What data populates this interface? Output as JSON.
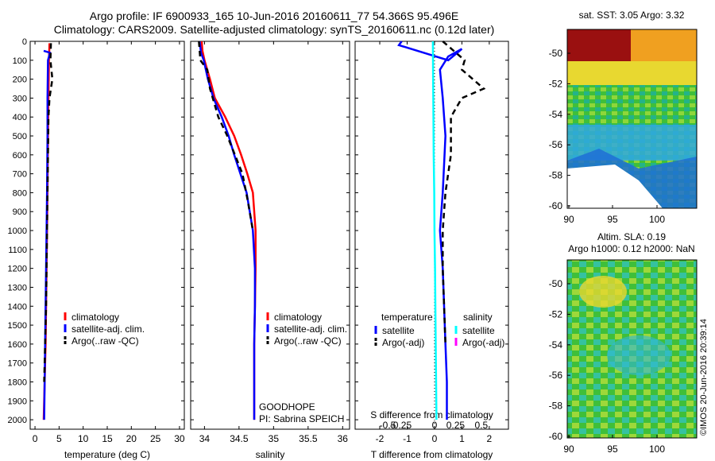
{
  "header": {
    "line1": "Argo profile: IF 6900933_165 10-Jun-2016 20160611_77 54.366S 95.496E",
    "line2": "Climatology: CARS2009. Satellite-adjusted climatology: synTS_20160611.nc (0.12d later)"
  },
  "side": {
    "sst_label": "sat. SST: 3.05 Argo: 3.32",
    "sla_label1": "Altim. SLA: 0.19",
    "sla_label2": "Argo h1000: 0.12 h2000: NaN",
    "credit": "©IMOS 20-Jun-2016 20:39:14"
  },
  "colors": {
    "climatology": "#ff0000",
    "satellite": "#0000ff",
    "argo": "#000000",
    "salinity_satellite": "#00ffff",
    "salinity_argo": "#ff00ff"
  },
  "chart_data": [
    {
      "type": "line",
      "xlabel": "temperature (deg C)",
      "ylabel": "",
      "xlim": [
        -1,
        31
      ],
      "ylim": [
        2050,
        0
      ],
      "xticks": [
        0,
        5,
        10,
        15,
        20,
        25,
        30
      ],
      "yticks": [
        0,
        100,
        200,
        300,
        400,
        500,
        600,
        700,
        800,
        900,
        1000,
        1100,
        1200,
        1300,
        1400,
        1500,
        1600,
        1700,
        1800,
        1900,
        2000
      ],
      "legend": [
        "climatology",
        "satellite-adj. clim.",
        "Argo(..raw -QC)"
      ],
      "series": [
        {
          "name": "climatology",
          "x": [
            3.0,
            2.9,
            2.8,
            2.7,
            2.6,
            2.5,
            2.4,
            2.3,
            2.2,
            2.0,
            1.8
          ],
          "y": [
            10,
            100,
            300,
            500,
            800,
            1000,
            1200,
            1400,
            1600,
            1800,
            2000
          ]
        },
        {
          "name": "satellite-adj. clim.",
          "x": [
            1.8,
            3.1,
            2.7,
            2.6,
            2.6,
            2.5,
            2.4,
            2.3,
            2.2,
            2.1,
            2.0,
            1.9
          ],
          "y": [
            50,
            60,
            100,
            300,
            500,
            800,
            1000,
            1200,
            1400,
            1600,
            1800,
            2000
          ]
        },
        {
          "name": "Argo(..raw -QC)",
          "x": [
            3.3,
            3.2,
            3.6,
            3.0,
            2.8,
            2.7,
            2.6,
            2.5,
            2.4,
            2.3,
            2.1,
            1.9
          ],
          "y": [
            10,
            100,
            200,
            300,
            400,
            600,
            800,
            1000,
            1200,
            1400,
            1600,
            1800
          ]
        }
      ]
    },
    {
      "type": "line",
      "xlabel": "salinity",
      "xlim": [
        33.8,
        36.1
      ],
      "ylim": [
        2050,
        0
      ],
      "xticks": [
        34,
        34.5,
        35,
        35.5,
        36
      ],
      "legend": [
        "climatology",
        "satellite-adj. clim.",
        "Argo(..raw -QC)"
      ],
      "annotation": [
        "GOODHOPE",
        "PI: Sabrina SPEICH"
      ],
      "series": [
        {
          "name": "climatology",
          "x": [
            33.96,
            33.97,
            34.0,
            34.08,
            34.15,
            34.3,
            34.43,
            34.53,
            34.62,
            34.7,
            34.74,
            34.74,
            34.73,
            34.72,
            34.72,
            34.72
          ],
          "y": [
            0,
            50,
            100,
            200,
            300,
            400,
            500,
            600,
            700,
            800,
            1000,
            1200,
            1400,
            1600,
            1800,
            2000
          ]
        },
        {
          "name": "satellite-adj. clim.",
          "x": [
            33.93,
            33.95,
            33.99,
            34.05,
            34.13,
            34.25,
            34.35,
            34.43,
            34.52,
            34.61,
            34.7,
            34.73,
            34.73,
            34.72,
            34.72,
            34.72
          ],
          "y": [
            0,
            60,
            100,
            200,
            300,
            400,
            500,
            600,
            700,
            800,
            1000,
            1200,
            1400,
            1600,
            1800,
            2000
          ]
        },
        {
          "name": "Argo(..raw -QC)",
          "x": [
            33.92,
            33.94,
            34.04,
            34.08,
            34.2,
            34.33,
            34.44,
            34.55,
            34.63,
            34.7
          ],
          "y": [
            0,
            100,
            150,
            250,
            400,
            500,
            600,
            700,
            850,
            1000
          ]
        }
      ]
    },
    {
      "type": "line",
      "xlabel": "T difference from climatology",
      "xlabel_top": "S difference from climatology",
      "xlim": [
        -2.9,
        2.7
      ],
      "ylim": [
        2050,
        0
      ],
      "xticks": [
        -2,
        -1,
        0,
        1,
        2
      ],
      "xticks_top": [
        -0.5,
        -0.25,
        0,
        0.25,
        0.5
      ],
      "legend_temperature_title": "temperature",
      "legend_temperature": [
        "satellite",
        "Argo(-adj)"
      ],
      "legend_salinity_title": "salinity",
      "legend_salinity": [
        "satellite",
        "Argo(-adj)"
      ],
      "series": [
        {
          "name": "temperature satellite",
          "x": [
            -1.2,
            -1.3,
            -0.4,
            0.5,
            1.0,
            0.5,
            0.2,
            0.3,
            0.4,
            0.3,
            0.2,
            0.3,
            0.35,
            0.4,
            0.45,
            0.45
          ],
          "y": [
            0,
            20,
            60,
            100,
            40,
            80,
            150,
            300,
            500,
            800,
            1000,
            1200,
            1400,
            1600,
            1800,
            2000
          ]
        },
        {
          "name": "temperature Argo(-adj)",
          "x": [
            0.3,
            1.1,
            1.0,
            1.4,
            1.8,
            1.0,
            0.6,
            0.6,
            0.4,
            0.3,
            0.3,
            0.35,
            0.4
          ],
          "y": [
            0,
            100,
            150,
            200,
            250,
            300,
            400,
            600,
            800,
            1000,
            1200,
            1400,
            1600
          ]
        },
        {
          "name": "salinity satellite",
          "x": [
            -0.06,
            -0.05,
            -0.04,
            -0.03,
            -0.01,
            0.0,
            0.02,
            0.03,
            0.05,
            0.07
          ],
          "y": [
            0,
            200,
            400,
            600,
            800,
            1000,
            1200,
            1400,
            1700,
            2000
          ]
        }
      ]
    }
  ],
  "maps": [
    {
      "xticks": [
        "90",
        "95",
        "100"
      ],
      "yticks": [
        "-50",
        "-52",
        "-54",
        "-56",
        "-58",
        "-60"
      ]
    },
    {
      "xticks": [
        "90",
        "95",
        "100"
      ],
      "yticks": [
        "-50",
        "-52",
        "-54",
        "-56",
        "-58",
        "-60"
      ]
    }
  ]
}
